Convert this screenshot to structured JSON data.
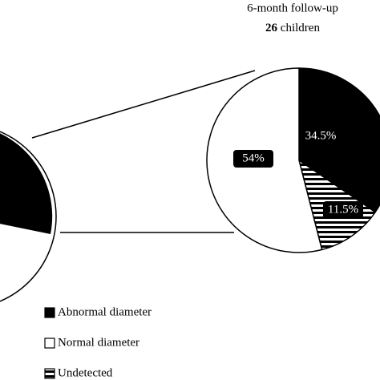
{
  "chart_data": {
    "type": "pie",
    "title": "6-month follow-up",
    "subtitle": "26 children",
    "categories": [
      "Abnormal diameter",
      "Undetected",
      "Normal diameter"
    ],
    "values": [
      34.5,
      11.5,
      54
    ],
    "value_labels": [
      "34.5%",
      "11.5%",
      "54%"
    ],
    "colors": [
      "#000000",
      "stripes",
      "#ffffff"
    ],
    "legend": [
      "Abnormal diameter",
      "Normal diameter",
      "Undetected"
    ]
  }
}
